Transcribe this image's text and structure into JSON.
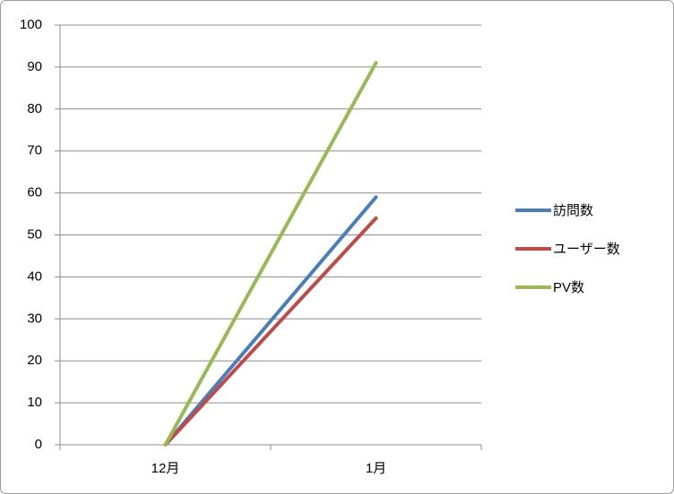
{
  "chart_data": {
    "type": "line",
    "categories": [
      "12月",
      "1月"
    ],
    "series": [
      {
        "name": "訪問数",
        "color": "#4a7ebb",
        "values": [
          0,
          59
        ]
      },
      {
        "name": "ユーザー数",
        "color": "#be4b48",
        "values": [
          0,
          54
        ]
      },
      {
        "name": "PV数",
        "color": "#98b954",
        "values": [
          0,
          91
        ]
      }
    ],
    "ylim": [
      0,
      100
    ],
    "yticks": [
      0,
      10,
      20,
      30,
      40,
      50,
      60,
      70,
      80,
      90,
      100
    ],
    "grid": true,
    "legend": "right"
  }
}
